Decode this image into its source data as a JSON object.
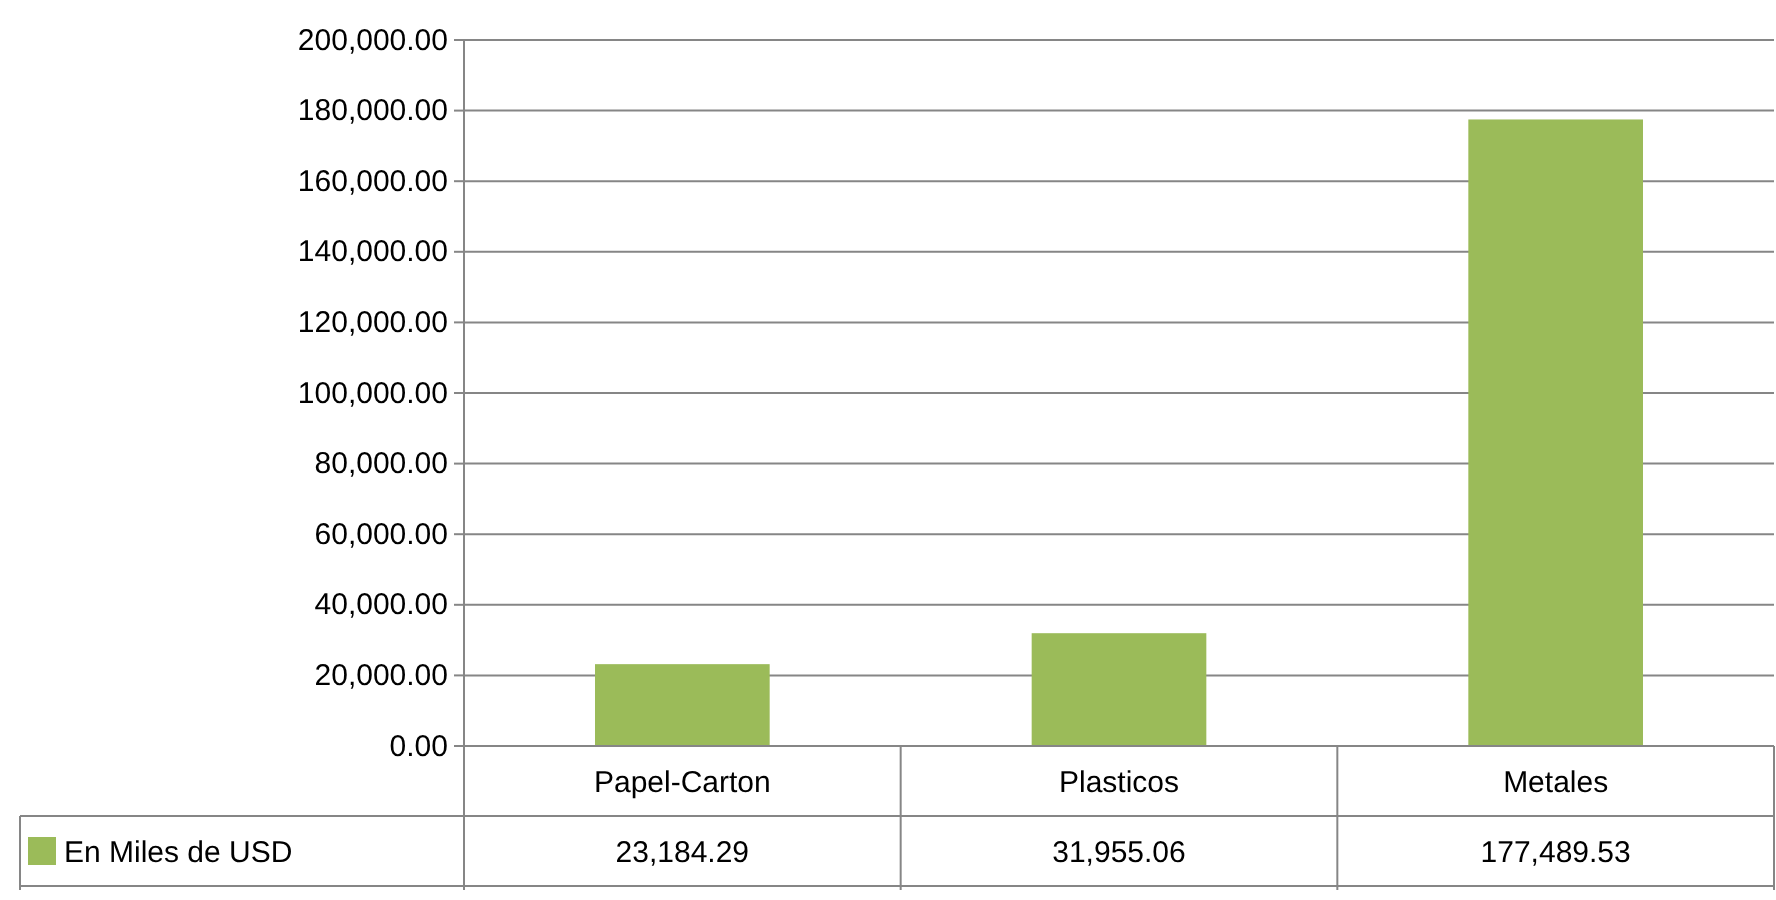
{
  "chart_data": {
    "type": "bar",
    "categories": [
      "Papel-Carton",
      "Plasticos",
      "Metales"
    ],
    "series": [
      {
        "name": "En Miles de USD",
        "color": "#9bbb59",
        "values": [
          23184.29,
          31955.06,
          177489.53
        ],
        "value_labels": [
          "23,184.29",
          "31,955.06",
          "177,489.53"
        ]
      }
    ],
    "ylim": [
      0,
      200000
    ],
    "yticks": [
      {
        "value": 0,
        "label": "0.00"
      },
      {
        "value": 20000,
        "label": "20,000.00"
      },
      {
        "value": 40000,
        "label": "40,000.00"
      },
      {
        "value": 60000,
        "label": "60,000.00"
      },
      {
        "value": 80000,
        "label": "80,000.00"
      },
      {
        "value": 100000,
        "label": "100,000.00"
      },
      {
        "value": 120000,
        "label": "120,000.00"
      },
      {
        "value": 140000,
        "label": "140,000.00"
      },
      {
        "value": 160000,
        "label": "160,000.00"
      },
      {
        "value": 180000,
        "label": "180,000.00"
      },
      {
        "value": 200000,
        "label": "200,000.00"
      }
    ],
    "grid": "y",
    "legend": "bottom left"
  }
}
